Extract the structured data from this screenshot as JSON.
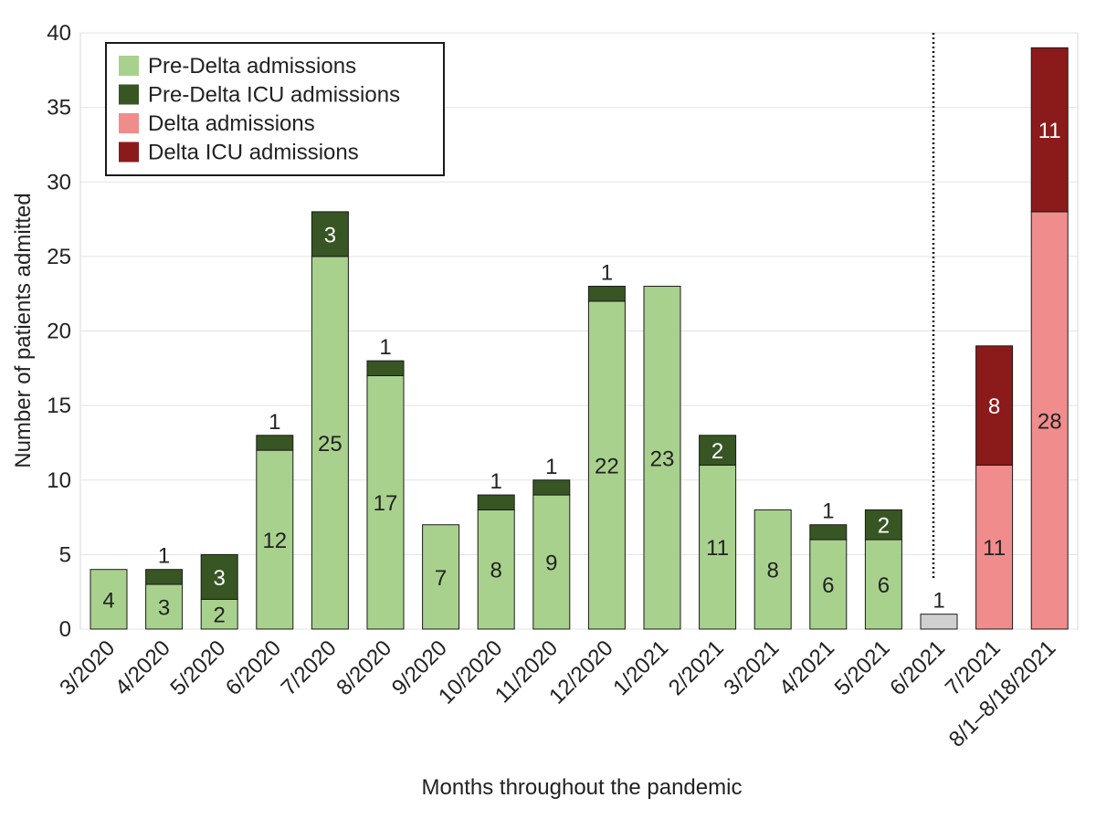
{
  "chart_data": {
    "type": "bar",
    "stacked": true,
    "xlabel": "Months throughout the pandemic",
    "ylabel": "Number of patients admitted",
    "ylim": [
      0,
      40
    ],
    "yticks": [
      0,
      5,
      10,
      15,
      20,
      25,
      30,
      35,
      40
    ],
    "grid": "horizontal",
    "legend_placement": "top-left",
    "categories": [
      "3/2020",
      "4/2020",
      "5/2020",
      "6/2020",
      "7/2020",
      "8/2020",
      "9/2020",
      "10/2020",
      "11/2020",
      "12/2020",
      "1/2021",
      "2/2021",
      "3/2021",
      "4/2021",
      "5/2021",
      "6/2021",
      "7/2021",
      "8/1–8/18/2021"
    ],
    "series": [
      {
        "name": "Pre-Delta admissions",
        "color": "#a9d18e",
        "label_color": "#222222",
        "values": [
          4,
          3,
          2,
          12,
          25,
          17,
          7,
          8,
          9,
          22,
          23,
          11,
          8,
          6,
          6,
          0,
          0,
          0
        ]
      },
      {
        "name": "Pre-Delta ICU admissions",
        "color": "#375623",
        "label_color": "#ffffff",
        "values": [
          0,
          1,
          3,
          1,
          3,
          1,
          0,
          1,
          1,
          1,
          0,
          2,
          0,
          1,
          2,
          0,
          0,
          0
        ]
      },
      {
        "name": "",
        "color": "#d0d0d0",
        "label_color": "#222222",
        "values": [
          0,
          0,
          0,
          0,
          0,
          0,
          0,
          0,
          0,
          0,
          0,
          0,
          0,
          0,
          0,
          1,
          0,
          0
        ]
      },
      {
        "name": "Delta admissions",
        "color": "#f08c8c",
        "label_color": "#222222",
        "values": [
          0,
          0,
          0,
          0,
          0,
          0,
          0,
          0,
          0,
          0,
          0,
          0,
          0,
          0,
          0,
          0,
          11,
          28
        ]
      },
      {
        "name": "Delta ICU admissions",
        "color": "#8b1a1a",
        "label_color": "#ffffff",
        "values": [
          0,
          0,
          0,
          0,
          0,
          0,
          0,
          0,
          0,
          0,
          0,
          0,
          0,
          0,
          0,
          0,
          8,
          11
        ]
      }
    ],
    "legend": [
      {
        "label": "Pre-Delta admissions",
        "color": "#a9d18e"
      },
      {
        "label": "Pre-Delta ICU admissions",
        "color": "#375623"
      },
      {
        "label": "Delta admissions",
        "color": "#f08c8c"
      },
      {
        "label": "Delta ICU admissions",
        "color": "#8b1a1a"
      }
    ],
    "divider_line": {
      "style": "dotted",
      "between": [
        "6/2021",
        "7/2021"
      ]
    }
  }
}
